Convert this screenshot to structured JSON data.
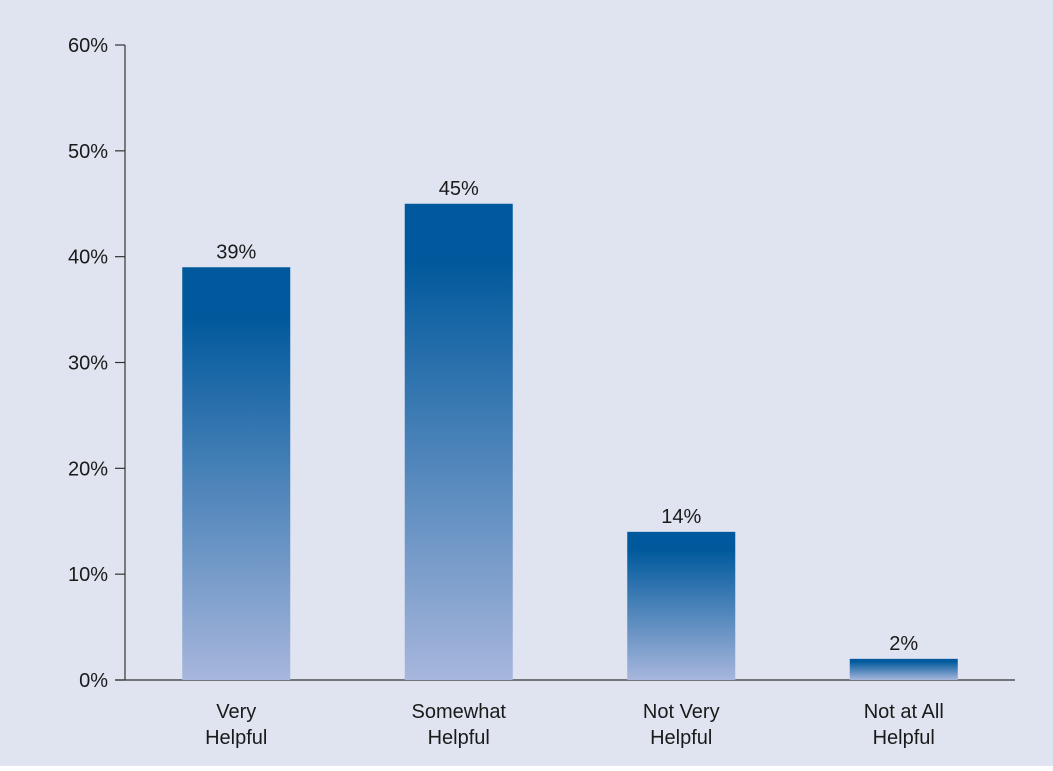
{
  "chart_data": {
    "type": "bar",
    "title": "",
    "xlabel": "",
    "ylabel": "",
    "categories": [
      "Very Helpful",
      "Somewhat Helpful",
      "Not Very Helpful",
      "Not at All Helpful"
    ],
    "category_label_lines": [
      [
        "Very",
        "Helpful"
      ],
      [
        "Somewhat",
        "Helpful"
      ],
      [
        "Not Very",
        "Helpful"
      ],
      [
        "Not at All",
        "Helpful"
      ]
    ],
    "values": [
      39,
      45,
      14,
      2
    ],
    "value_labels": [
      "39%",
      "45%",
      "14%",
      "2%"
    ],
    "ylim": [
      0,
      60
    ],
    "y_ticks": [
      0,
      10,
      20,
      30,
      40,
      50,
      60
    ],
    "y_tick_labels": [
      "0%",
      "10%",
      "20%",
      "30%",
      "40%",
      "50%",
      "60%"
    ],
    "grid": false,
    "legend": "none",
    "colors": {
      "background": "#dfe4f0",
      "bar_top": "#00599c",
      "bar_bottom": "#a7b6dc",
      "axis": "#333333"
    }
  }
}
